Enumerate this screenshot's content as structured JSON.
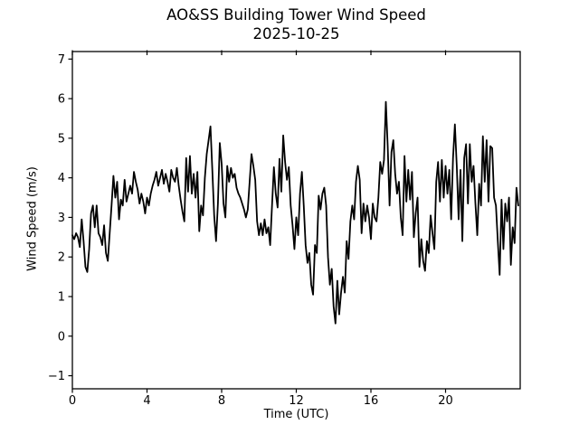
{
  "chart_data": {
    "type": "line",
    "title": "AO&SS Building Tower Wind Speed",
    "subtitle": "2025-10-25",
    "xlabel": "Time (UTC)",
    "ylabel": "Wind Speed (m/s)",
    "xlim": [
      0,
      24
    ],
    "ylim": [
      -1.33,
      7.19
    ],
    "xticks": [
      0,
      4,
      8,
      12,
      16,
      20
    ],
    "yticks": [
      -1,
      0,
      1,
      2,
      3,
      4,
      5,
      6,
      7
    ],
    "grid": false,
    "legend": null,
    "line_color": "#000000",
    "text_color": "#000000",
    "background": "#ffffff",
    "series": [
      {
        "name": "wind-speed",
        "x": {
          "start": 0.0,
          "step": 0.1,
          "count": 240
        },
        "values": [
          2.55,
          2.45,
          2.6,
          2.5,
          2.25,
          2.95,
          2.4,
          1.75,
          1.62,
          2.2,
          3.1,
          3.3,
          2.75,
          3.3,
          2.6,
          2.5,
          2.3,
          2.8,
          2.1,
          1.9,
          2.6,
          3.3,
          4.05,
          3.5,
          3.9,
          2.95,
          3.45,
          3.3,
          3.95,
          3.4,
          3.6,
          3.8,
          3.6,
          4.15,
          3.9,
          3.7,
          3.35,
          3.6,
          3.4,
          3.1,
          3.5,
          3.3,
          3.6,
          3.8,
          3.95,
          4.15,
          3.8,
          4.0,
          4.2,
          3.85,
          4.1,
          3.9,
          3.65,
          4.2,
          4.0,
          3.9,
          4.25,
          3.8,
          3.45,
          3.15,
          2.9,
          4.5,
          3.65,
          4.55,
          3.6,
          4.1,
          3.5,
          4.15,
          2.65,
          3.3,
          3.05,
          4.0,
          4.6,
          4.95,
          5.3,
          4.2,
          3.05,
          2.4,
          3.35,
          4.88,
          4.35,
          3.35,
          3.0,
          4.3,
          3.9,
          4.25,
          4.0,
          4.1,
          3.75,
          3.6,
          3.5,
          3.35,
          3.2,
          3.0,
          3.2,
          3.9,
          4.6,
          4.3,
          3.95,
          2.9,
          2.55,
          2.85,
          2.55,
          2.95,
          2.6,
          2.75,
          2.3,
          3.3,
          4.27,
          3.6,
          3.25,
          4.48,
          3.65,
          5.07,
          4.4,
          3.95,
          4.27,
          3.3,
          2.8,
          2.2,
          3.0,
          2.55,
          3.6,
          4.15,
          3.3,
          2.3,
          1.85,
          2.1,
          1.3,
          1.05,
          2.3,
          2.1,
          3.55,
          3.2,
          3.6,
          3.75,
          3.3,
          2.0,
          1.3,
          1.7,
          0.75,
          0.32,
          1.4,
          0.55,
          1.1,
          1.5,
          1.1,
          2.4,
          1.95,
          2.9,
          3.3,
          2.95,
          3.9,
          4.3,
          3.95,
          2.6,
          3.35,
          2.9,
          3.3,
          3.0,
          2.45,
          3.35,
          3.0,
          2.9,
          3.5,
          4.4,
          4.1,
          4.45,
          5.92,
          4.8,
          3.3,
          4.65,
          4.95,
          4.1,
          3.6,
          3.9,
          3.0,
          2.55,
          4.55,
          3.4,
          4.2,
          3.45,
          4.15,
          2.5,
          3.1,
          3.5,
          1.75,
          2.45,
          1.9,
          1.65,
          2.4,
          2.1,
          3.05,
          2.6,
          2.2,
          3.9,
          4.4,
          3.4,
          4.45,
          3.5,
          4.3,
          3.6,
          4.2,
          2.95,
          4.5,
          5.35,
          4.3,
          2.95,
          4.2,
          2.4,
          4.5,
          4.85,
          3.35,
          4.85,
          3.9,
          4.3,
          3.35,
          2.55,
          3.85,
          3.3,
          5.05,
          3.9,
          4.95,
          3.4,
          4.8,
          4.75,
          3.5,
          3.3,
          2.4,
          1.55,
          3.45,
          2.2,
          3.35,
          2.9,
          3.5,
          1.8,
          2.75,
          2.35,
          3.75,
          3.3
        ]
      }
    ]
  }
}
